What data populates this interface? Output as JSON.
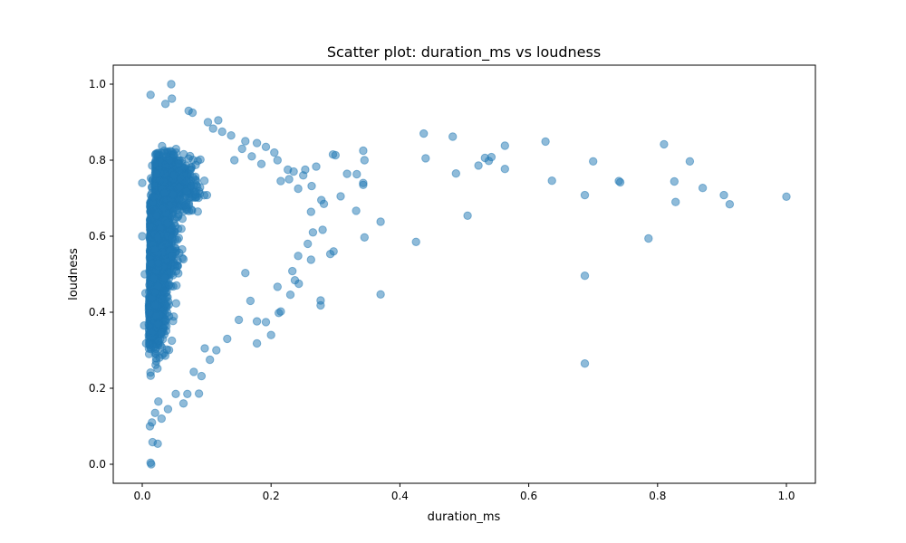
{
  "chart_data": {
    "type": "scatter",
    "title": "Scatter plot: duration_ms vs loudness",
    "xlabel": "duration_ms",
    "ylabel": "loudness",
    "xlim": [
      -0.045,
      1.045
    ],
    "ylim": [
      -0.05,
      1.05
    ],
    "xticks": [
      0.0,
      0.2,
      0.4,
      0.6,
      0.8,
      1.0
    ],
    "xtick_labels": [
      "0.0",
      "0.2",
      "0.4",
      "0.6",
      "0.8",
      "1.0"
    ],
    "yticks": [
      0.0,
      0.2,
      0.4,
      0.6,
      0.8,
      1.0
    ],
    "ytick_labels": [
      "0.0",
      "0.2",
      "0.4",
      "0.6",
      "0.8",
      "1.0"
    ],
    "grid": false,
    "legend": "none",
    "marker_color": "#1f77b4",
    "marker_alpha": 0.5,
    "points": [
      [
        0.045,
        1.0
      ],
      [
        0.013,
        0.972
      ],
      [
        0.046,
        0.962
      ],
      [
        0.036,
        0.948
      ],
      [
        0.072,
        0.93
      ],
      [
        0.078,
        0.925
      ],
      [
        0.102,
        0.9
      ],
      [
        0.118,
        0.905
      ],
      [
        0.11,
        0.883
      ],
      [
        0.124,
        0.875
      ],
      [
        0.138,
        0.865
      ],
      [
        0.16,
        0.85
      ],
      [
        0.178,
        0.845
      ],
      [
        0.192,
        0.835
      ],
      [
        0.205,
        0.82
      ],
      [
        0.155,
        0.83
      ],
      [
        0.143,
        0.8
      ],
      [
        0.17,
        0.81
      ],
      [
        0.185,
        0.79
      ],
      [
        0.21,
        0.8
      ],
      [
        0.226,
        0.775
      ],
      [
        0.235,
        0.77
      ],
      [
        0.253,
        0.775
      ],
      [
        0.27,
        0.783
      ],
      [
        0.25,
        0.76
      ],
      [
        0.228,
        0.75
      ],
      [
        0.215,
        0.745
      ],
      [
        0.242,
        0.725
      ],
      [
        0.263,
        0.732
      ],
      [
        0.278,
        0.695
      ],
      [
        0.282,
        0.685
      ],
      [
        0.296,
        0.815
      ],
      [
        0.3,
        0.813
      ],
      [
        0.318,
        0.764
      ],
      [
        0.333,
        0.763
      ],
      [
        0.343,
        0.825
      ],
      [
        0.345,
        0.8
      ],
      [
        0.343,
        0.74
      ],
      [
        0.343,
        0.735
      ],
      [
        0.308,
        0.705
      ],
      [
        0.332,
        0.667
      ],
      [
        0.262,
        0.664
      ],
      [
        0.265,
        0.61
      ],
      [
        0.28,
        0.617
      ],
      [
        0.257,
        0.58
      ],
      [
        0.242,
        0.548
      ],
      [
        0.262,
        0.538
      ],
      [
        0.292,
        0.553
      ],
      [
        0.297,
        0.56
      ],
      [
        0.345,
        0.597
      ],
      [
        0.37,
        0.638
      ],
      [
        0.425,
        0.585
      ],
      [
        0.37,
        0.447
      ],
      [
        0.277,
        0.431
      ],
      [
        0.277,
        0.418
      ],
      [
        0.233,
        0.508
      ],
      [
        0.237,
        0.484
      ],
      [
        0.243,
        0.475
      ],
      [
        0.23,
        0.446
      ],
      [
        0.21,
        0.467
      ],
      [
        0.212,
        0.398
      ],
      [
        0.215,
        0.402
      ],
      [
        0.192,
        0.374
      ],
      [
        0.178,
        0.376
      ],
      [
        0.2,
        0.34
      ],
      [
        0.178,
        0.318
      ],
      [
        0.168,
        0.43
      ],
      [
        0.16,
        0.503
      ],
      [
        0.15,
        0.38
      ],
      [
        0.132,
        0.33
      ],
      [
        0.115,
        0.3
      ],
      [
        0.105,
        0.275
      ],
      [
        0.097,
        0.305
      ],
      [
        0.092,
        0.232
      ],
      [
        0.088,
        0.186
      ],
      [
        0.08,
        0.243
      ],
      [
        0.07,
        0.185
      ],
      [
        0.064,
        0.16
      ],
      [
        0.052,
        0.185
      ],
      [
        0.04,
        0.145
      ],
      [
        0.03,
        0.12
      ],
      [
        0.025,
        0.165
      ],
      [
        0.02,
        0.135
      ],
      [
        0.015,
        0.11
      ],
      [
        0.012,
        0.1
      ],
      [
        0.016,
        0.058
      ],
      [
        0.024,
        0.054
      ],
      [
        0.013,
        0.004
      ],
      [
        0.014,
        0.0
      ],
      [
        0.005,
        0.45
      ],
      [
        0.003,
        0.365
      ],
      [
        0.006,
        0.318
      ],
      [
        0.004,
        0.5
      ],
      [
        0.0,
        0.74
      ],
      [
        0.0,
        0.6
      ],
      [
        0.437,
        0.87
      ],
      [
        0.44,
        0.805
      ],
      [
        0.482,
        0.862
      ],
      [
        0.487,
        0.765
      ],
      [
        0.505,
        0.654
      ],
      [
        0.522,
        0.786
      ],
      [
        0.532,
        0.806
      ],
      [
        0.538,
        0.798
      ],
      [
        0.542,
        0.808
      ],
      [
        0.563,
        0.838
      ],
      [
        0.563,
        0.777
      ],
      [
        0.626,
        0.849
      ],
      [
        0.636,
        0.746
      ],
      [
        0.687,
        0.708
      ],
      [
        0.687,
        0.496
      ],
      [
        0.687,
        0.265
      ],
      [
        0.7,
        0.797
      ],
      [
        0.74,
        0.745
      ],
      [
        0.742,
        0.742
      ],
      [
        0.786,
        0.594
      ],
      [
        0.81,
        0.842
      ],
      [
        0.826,
        0.744
      ],
      [
        0.828,
        0.69
      ],
      [
        0.85,
        0.797
      ],
      [
        0.87,
        0.727
      ],
      [
        0.903,
        0.708
      ],
      [
        0.912,
        0.684
      ],
      [
        1.0,
        0.704
      ]
    ]
  }
}
